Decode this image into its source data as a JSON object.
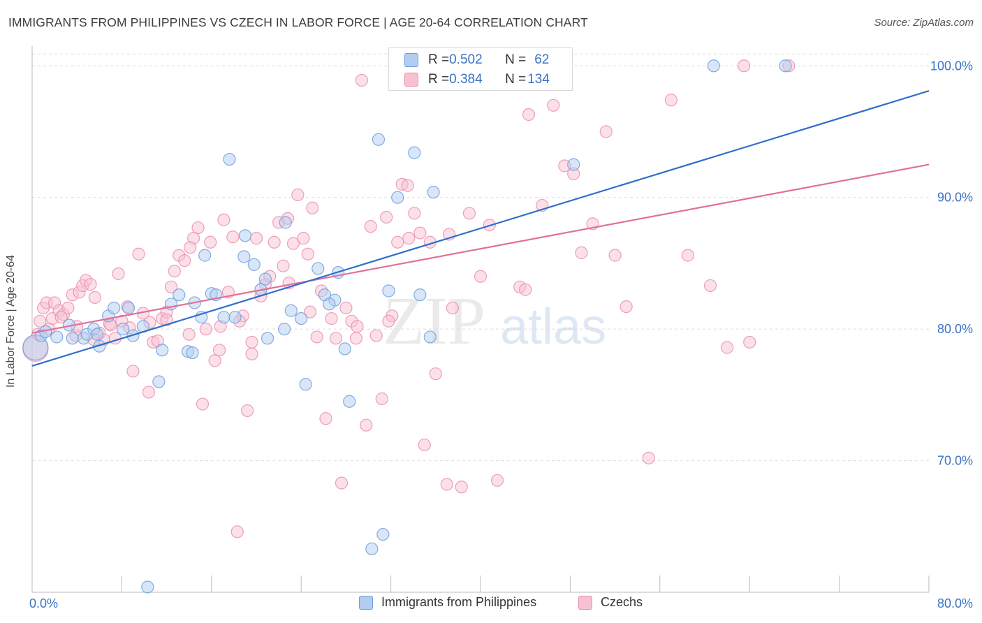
{
  "header": {
    "title": "IMMIGRANTS FROM PHILIPPINES VS CZECH IN LABOR FORCE | AGE 20-64 CORRELATION CHART",
    "source": "Source: ZipAtlas.com"
  },
  "watermark": {
    "zip": "ZIP",
    "atlas": "atlas"
  },
  "legend_top": {
    "rows": [
      {
        "r_label": "R = ",
        "r_value": "0.502",
        "n_label": "N = ",
        "n_value": "62"
      },
      {
        "r_label": "R = ",
        "r_value": "0.384",
        "n_label": "N = ",
        "n_value": "134"
      }
    ]
  },
  "legend_bottom": {
    "items": [
      {
        "label": "Immigrants from Philippines"
      },
      {
        "label": "Czechs"
      }
    ]
  },
  "colors": {
    "blue_fill": "#b3cdf0",
    "blue_stroke": "#6f9fde",
    "blue_line": "#2f6fcc",
    "pink_fill": "#f7c1d2",
    "pink_stroke": "#ea8fae",
    "pink_line": "#e0709a",
    "tick_label": "#3a73c4",
    "grid": "#dddddd"
  },
  "chart_data": {
    "type": "scatter",
    "title": "IMMIGRANTS FROM PHILIPPINES VS CZECH IN LABOR FORCE | AGE 20-64 CORRELATION CHART",
    "xlabel": "",
    "ylabel": "In Labor Force | Age 20-64",
    "xlim": [
      0,
      80
    ],
    "ylim": [
      60,
      101.5
    ],
    "x_tick_labels": [
      "0.0%",
      "80.0%"
    ],
    "y_ticks": [
      70,
      80,
      90,
      100
    ],
    "y_tick_labels": [
      "70.0%",
      "80.0%",
      "90.0%",
      "100.0%"
    ],
    "grid": "horizontal dashed",
    "legend": "top-center",
    "series": [
      {
        "name": "Immigrants from Philippines",
        "color": "#6f9fde",
        "trend": {
          "x": [
            0,
            80
          ],
          "y": [
            77.2,
            98.1
          ]
        },
        "points": [
          [
            0.3,
            78.6
          ],
          [
            0.8,
            79.5
          ],
          [
            1.2,
            79.8
          ],
          [
            2.2,
            79.4
          ],
          [
            3.3,
            80.3
          ],
          [
            3.6,
            79.3
          ],
          [
            4.6,
            79.3
          ],
          [
            4.9,
            79.6
          ],
          [
            5.5,
            80.0
          ],
          [
            5.8,
            79.6
          ],
          [
            6.8,
            81.0
          ],
          [
            7.3,
            81.6
          ],
          [
            8.1,
            80.0
          ],
          [
            8.6,
            81.6
          ],
          [
            9.9,
            80.2
          ],
          [
            10.3,
            60.4
          ],
          [
            11.3,
            76.0
          ],
          [
            11.6,
            78.4
          ],
          [
            12.4,
            81.9
          ],
          [
            13.1,
            82.6
          ],
          [
            13.9,
            78.3
          ],
          [
            14.3,
            78.2
          ],
          [
            15.1,
            80.9
          ],
          [
            15.4,
            85.6
          ],
          [
            16.0,
            82.7
          ],
          [
            16.4,
            82.6
          ],
          [
            17.1,
            80.9
          ],
          [
            17.6,
            92.9
          ],
          [
            18.1,
            80.9
          ],
          [
            18.9,
            85.5
          ],
          [
            19.0,
            87.1
          ],
          [
            19.8,
            84.9
          ],
          [
            20.4,
            83.0
          ],
          [
            20.8,
            83.8
          ],
          [
            22.6,
            88.1
          ],
          [
            23.1,
            81.4
          ],
          [
            24.0,
            80.8
          ],
          [
            24.4,
            75.8
          ],
          [
            25.5,
            84.6
          ],
          [
            26.1,
            82.6
          ],
          [
            27.3,
            84.3
          ],
          [
            27.9,
            78.5
          ],
          [
            28.3,
            74.5
          ],
          [
            30.3,
            63.3
          ],
          [
            30.9,
            94.4
          ],
          [
            31.3,
            64.4
          ],
          [
            31.8,
            82.9
          ],
          [
            32.6,
            90.0
          ],
          [
            34.1,
            93.4
          ],
          [
            34.6,
            82.6
          ],
          [
            35.5,
            79.4
          ],
          [
            35.8,
            90.4
          ],
          [
            48.3,
            92.5
          ],
          [
            60.8,
            100.0
          ],
          [
            67.2,
            100.0
          ],
          [
            27.0,
            82.2
          ],
          [
            22.5,
            80.0
          ],
          [
            21.0,
            79.3
          ],
          [
            26.5,
            81.9
          ],
          [
            14.5,
            82.0
          ],
          [
            9.0,
            79.5
          ],
          [
            6.0,
            78.7
          ]
        ]
      },
      {
        "name": "Czechs",
        "color": "#ea8fae",
        "trend": {
          "x": [
            0,
            80
          ],
          "y": [
            79.7,
            92.5
          ]
        },
        "points": [
          [
            0.3,
            78.5
          ],
          [
            0.7,
            80.6
          ],
          [
            1.0,
            81.6
          ],
          [
            1.3,
            82.0
          ],
          [
            1.8,
            80.8
          ],
          [
            2.0,
            82.0
          ],
          [
            2.4,
            81.4
          ],
          [
            2.8,
            81.1
          ],
          [
            3.2,
            81.6
          ],
          [
            3.6,
            82.6
          ],
          [
            3.9,
            79.5
          ],
          [
            4.2,
            82.8
          ],
          [
            4.5,
            83.3
          ],
          [
            4.8,
            83.7
          ],
          [
            5.2,
            83.4
          ],
          [
            5.6,
            82.4
          ],
          [
            6.0,
            79.7
          ],
          [
            6.4,
            79.2
          ],
          [
            6.9,
            80.4
          ],
          [
            7.4,
            79.3
          ],
          [
            7.7,
            84.2
          ],
          [
            8.0,
            80.6
          ],
          [
            8.5,
            81.7
          ],
          [
            9.0,
            76.8
          ],
          [
            9.5,
            85.7
          ],
          [
            9.9,
            81.2
          ],
          [
            10.4,
            75.2
          ],
          [
            10.8,
            79.0
          ],
          [
            11.2,
            79.1
          ],
          [
            11.6,
            80.8
          ],
          [
            12.0,
            81.3
          ],
          [
            12.4,
            83.2
          ],
          [
            12.7,
            84.4
          ],
          [
            13.1,
            85.6
          ],
          [
            13.6,
            85.2
          ],
          [
            14.0,
            79.6
          ],
          [
            14.4,
            86.9
          ],
          [
            14.8,
            87.7
          ],
          [
            15.2,
            74.3
          ],
          [
            15.5,
            80.0
          ],
          [
            15.9,
            86.6
          ],
          [
            16.3,
            77.6
          ],
          [
            16.7,
            78.4
          ],
          [
            17.1,
            88.3
          ],
          [
            17.5,
            82.8
          ],
          [
            17.9,
            87.0
          ],
          [
            18.3,
            64.6
          ],
          [
            18.8,
            81.0
          ],
          [
            19.2,
            73.8
          ],
          [
            19.6,
            78.1
          ],
          [
            20.0,
            86.9
          ],
          [
            20.4,
            82.5
          ],
          [
            20.8,
            83.4
          ],
          [
            21.2,
            84.0
          ],
          [
            21.6,
            86.6
          ],
          [
            22.0,
            88.1
          ],
          [
            22.4,
            84.8
          ],
          [
            22.8,
            88.4
          ],
          [
            23.3,
            86.5
          ],
          [
            23.7,
            90.2
          ],
          [
            24.2,
            86.9
          ],
          [
            24.6,
            85.7
          ],
          [
            25.0,
            89.2
          ],
          [
            25.4,
            79.4
          ],
          [
            25.8,
            82.9
          ],
          [
            26.2,
            73.2
          ],
          [
            26.7,
            80.8
          ],
          [
            27.1,
            79.3
          ],
          [
            27.6,
            68.3
          ],
          [
            28.0,
            81.6
          ],
          [
            28.5,
            80.6
          ],
          [
            28.9,
            79.3
          ],
          [
            29.4,
            98.9
          ],
          [
            29.8,
            72.7
          ],
          [
            30.2,
            87.8
          ],
          [
            30.7,
            79.5
          ],
          [
            31.2,
            74.7
          ],
          [
            31.6,
            88.5
          ],
          [
            32.1,
            81.0
          ],
          [
            32.6,
            86.6
          ],
          [
            33.0,
            91.0
          ],
          [
            33.6,
            86.9
          ],
          [
            34.1,
            88.8
          ],
          [
            34.6,
            87.3
          ],
          [
            35.0,
            71.2
          ],
          [
            35.5,
            86.6
          ],
          [
            36.0,
            76.6
          ],
          [
            37.0,
            68.2
          ],
          [
            37.5,
            81.6
          ],
          [
            38.3,
            68.0
          ],
          [
            39.0,
            88.8
          ],
          [
            40.0,
            84.0
          ],
          [
            40.8,
            87.9
          ],
          [
            41.5,
            68.5
          ],
          [
            42.5,
            100.0
          ],
          [
            43.5,
            83.2
          ],
          [
            44.3,
            96.3
          ],
          [
            45.5,
            89.4
          ],
          [
            46.5,
            97.0
          ],
          [
            47.5,
            92.4
          ],
          [
            48.3,
            91.8
          ],
          [
            49.0,
            85.8
          ],
          [
            50.0,
            88.0
          ],
          [
            51.2,
            95.0
          ],
          [
            52.0,
            85.6
          ],
          [
            53.0,
            81.7
          ],
          [
            55.0,
            70.2
          ],
          [
            57.0,
            97.4
          ],
          [
            58.5,
            85.6
          ],
          [
            60.5,
            83.3
          ],
          [
            62.0,
            78.6
          ],
          [
            63.5,
            100.0
          ],
          [
            64.0,
            79.0
          ],
          [
            67.5,
            100.0
          ],
          [
            37.2,
            87.2
          ],
          [
            33.5,
            90.9
          ],
          [
            29.0,
            80.2
          ],
          [
            22.9,
            83.5
          ],
          [
            19.6,
            79.0
          ],
          [
            16.8,
            80.2
          ],
          [
            14.1,
            86.2
          ],
          [
            12.0,
            80.7
          ],
          [
            10.5,
            80.5
          ],
          [
            8.7,
            80.1
          ],
          [
            7.0,
            80.3
          ],
          [
            5.5,
            79.2
          ],
          [
            4.0,
            80.2
          ],
          [
            2.6,
            80.9
          ],
          [
            1.5,
            80.0
          ],
          [
            0.5,
            79.6
          ],
          [
            18.5,
            80.6
          ],
          [
            24.8,
            81.3
          ],
          [
            31.8,
            80.6
          ],
          [
            44.0,
            83.0
          ]
        ]
      }
    ]
  }
}
